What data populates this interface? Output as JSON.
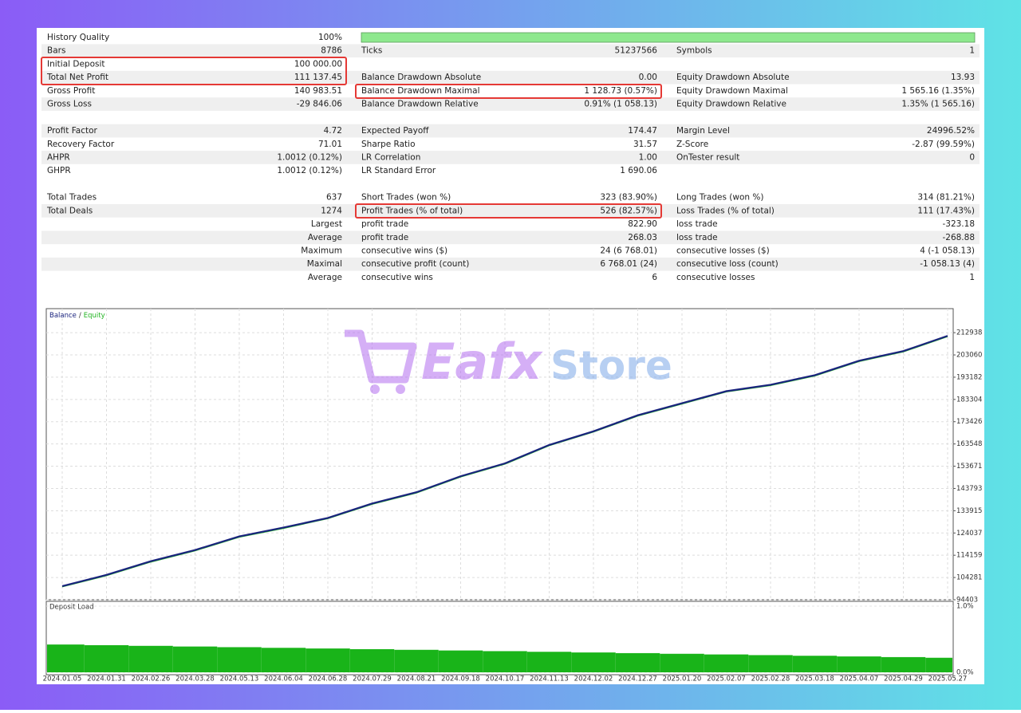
{
  "report": {
    "sections": [
      [
        [
          {
            "label": "History Quality",
            "value": "100%"
          },
          null,
          null
        ],
        [
          {
            "label": "Bars",
            "value": "8786"
          },
          {
            "label": "Ticks",
            "value": "51237566"
          },
          {
            "label": "Symbols",
            "value": "1"
          }
        ],
        [
          {
            "label": "Initial Deposit",
            "value": "100 000.00"
          },
          null,
          null
        ],
        [
          {
            "label": "Total Net Profit",
            "value": "111 137.45"
          },
          {
            "label": "Balance Drawdown Absolute",
            "value": "0.00"
          },
          {
            "label": "Equity Drawdown Absolute",
            "value": "13.93"
          }
        ],
        [
          {
            "label": "Gross Profit",
            "value": "140 983.51"
          },
          {
            "label": "Balance Drawdown Maximal",
            "value": "1 128.73 (0.57%)"
          },
          {
            "label": "Equity Drawdown Maximal",
            "value": "1 565.16 (1.35%)"
          }
        ],
        [
          {
            "label": "Gross Loss",
            "value": "-29 846.06"
          },
          {
            "label": "Balance Drawdown Relative",
            "value": "0.91% (1 058.13)"
          },
          {
            "label": "Equity Drawdown Relative",
            "value": "1.35% (1 565.16)"
          }
        ]
      ],
      [
        [
          {
            "label": "Profit Factor",
            "value": "4.72"
          },
          {
            "label": "Expected Payoff",
            "value": "174.47"
          },
          {
            "label": "Margin Level",
            "value": "24996.52%"
          }
        ],
        [
          {
            "label": "Recovery Factor",
            "value": "71.01"
          },
          {
            "label": "Sharpe Ratio",
            "value": "31.57"
          },
          {
            "label": "Z-Score",
            "value": "-2.87 (99.59%)"
          }
        ],
        [
          {
            "label": "AHPR",
            "value": "1.0012 (0.12%)"
          },
          {
            "label": "LR Correlation",
            "value": "1.00"
          },
          {
            "label": "OnTester result",
            "value": "0"
          }
        ],
        [
          {
            "label": "GHPR",
            "value": "1.0012 (0.12%)"
          },
          {
            "label": "LR Standard Error",
            "value": "1 690.06"
          },
          null
        ]
      ],
      [
        [
          {
            "label": "Total Trades",
            "value": "637"
          },
          {
            "label": "Short Trades (won %)",
            "value": "323 (83.90%)"
          },
          {
            "label": "Long Trades (won %)",
            "value": "314 (81.21%)"
          }
        ],
        [
          {
            "label": "Total Deals",
            "value": "1274"
          },
          {
            "label": "Profit Trades (% of total)",
            "value": "526 (82.57%)"
          },
          {
            "label": "Loss Trades (% of total)",
            "value": "111 (17.43%)"
          }
        ],
        [
          {
            "label": "Largest"
          },
          {
            "label": "profit trade",
            "value": "822.90"
          },
          {
            "label": "loss trade",
            "value": "-323.18"
          }
        ],
        [
          {
            "label": "Average"
          },
          {
            "label": "profit trade",
            "value": "268.03"
          },
          {
            "label": "loss trade",
            "value": "-268.88"
          }
        ],
        [
          {
            "label": "Maximum"
          },
          {
            "label": "consecutive wins ($)",
            "value": "24 (6 768.01)"
          },
          {
            "label": "consecutive losses ($)",
            "value": "4 (-1 058.13)"
          }
        ],
        [
          {
            "label": "Maximal"
          },
          {
            "label": "consecutive profit (count)",
            "value": "6 768.01 (24)"
          },
          {
            "label": "consecutive loss (count)",
            "value": "-1 058.13 (4)"
          }
        ],
        [
          {
            "label": "Average"
          },
          {
            "label": "consecutive wins",
            "value": "6"
          },
          {
            "label": "consecutive losses",
            "value": "1"
          }
        ]
      ]
    ]
  },
  "watermark": [
    "Eafx",
    "Store"
  ],
  "chart_data": [
    {
      "type": "line",
      "legend_separator": "/",
      "series": [
        {
          "name": "Balance",
          "color": "#1a237e",
          "values": [
            100455,
            105439,
            111491,
            116475,
            122527,
            126443,
            130715,
            137123,
            142107,
            149227,
            154923,
            163111,
            169163,
            176283,
            181623,
            186963,
            189811,
            194083,
            200491,
            204763,
            211527
          ]
        },
        {
          "name": "Equity",
          "color": "#22b422",
          "values": [
            100200,
            105150,
            111200,
            116200,
            122250,
            126150,
            130450,
            136850,
            141850,
            148950,
            154650,
            162850,
            168900,
            176000,
            181350,
            186700,
            189550,
            193800,
            200200,
            204500,
            211250
          ]
        }
      ],
      "ylim": [
        94403,
        223600
      ],
      "yticks": [
        212938,
        203060,
        193182,
        183304,
        173426,
        163548,
        153671,
        143793,
        133915,
        124037,
        114159,
        104281,
        94403
      ],
      "grid": true
    },
    {
      "type": "bar",
      "title": "Deposit Load",
      "color": "#19b419",
      "categories": [
        "2024.01.05",
        "2024.01.31",
        "2024.02.26",
        "2024.03.28",
        "2024.05.13",
        "2024.06.04",
        "2024.06.28",
        "2024.07.29",
        "2024.08.21",
        "2024.09.18",
        "2024.10.17",
        "2024.11.13",
        "2024.12.02",
        "2024.12.27",
        "2025.01.20",
        "2025.02.07",
        "2025.02.28",
        "2025.03.18",
        "2025.04.07",
        "2025.04.29",
        "2025.05.27"
      ],
      "values": [
        0.42,
        0.41,
        0.4,
        0.39,
        0.38,
        0.37,
        0.36,
        0.35,
        0.34,
        0.33,
        0.32,
        0.31,
        0.3,
        0.29,
        0.28,
        0.27,
        0.26,
        0.25,
        0.24,
        0.23,
        0.22
      ],
      "ylim": [
        0,
        1
      ],
      "yticks": [
        {
          "value": 1,
          "label": "1.0%"
        },
        {
          "value": 0,
          "label": "0.0%"
        }
      ],
      "grid": true
    }
  ]
}
